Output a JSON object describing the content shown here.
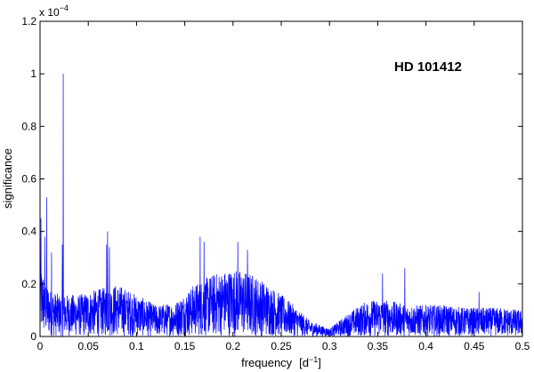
{
  "chart_data": {
    "type": "line",
    "title": "",
    "annotation": "HD 101412",
    "xlabel": "frequency",
    "xlabel_unit": "[d",
    "xlabel_unit_sup": "−1",
    "xlabel_unit_close": "]",
    "ylabel": "significance",
    "y_scale_text": "x 10",
    "y_scale_exp": "−4",
    "xlim": [
      0,
      0.5
    ],
    "ylim": [
      0,
      1.2
    ],
    "grid": false,
    "line_color": "#0000ff",
    "x_ticks": [
      0,
      0.05,
      0.1,
      0.15,
      0.2,
      0.25,
      0.3,
      0.35,
      0.4,
      0.45,
      0.5
    ],
    "x_tick_labels": [
      "0",
      "0.05",
      "0.1",
      "0.15",
      "0.2",
      "0.25",
      "0.3",
      "0.35",
      "0.4",
      "0.45",
      "0.5"
    ],
    "y_ticks": [
      0,
      0.2,
      0.4,
      0.6,
      0.8,
      1,
      1.2
    ],
    "y_tick_labels": [
      "0",
      "0.2",
      "0.4",
      "0.6",
      "0.8",
      "1",
      "1.2"
    ],
    "series": [
      {
        "envelope": {
          "x": [
            0,
            0.01,
            0.02,
            0.04,
            0.06,
            0.08,
            0.1,
            0.12,
            0.14,
            0.16,
            0.18,
            0.2,
            0.22,
            0.24,
            0.26,
            0.28,
            0.3,
            0.32,
            0.34,
            0.36,
            0.38,
            0.4,
            0.42,
            0.44,
            0.46,
            0.48,
            0.5
          ],
          "y": [
            0.28,
            0.18,
            0.16,
            0.16,
            0.18,
            0.2,
            0.16,
            0.12,
            0.13,
            0.2,
            0.24,
            0.26,
            0.24,
            0.19,
            0.13,
            0.06,
            0.03,
            0.09,
            0.14,
            0.14,
            0.12,
            0.12,
            0.12,
            0.11,
            0.11,
            0.11,
            0.1
          ]
        },
        "peaks": [
          {
            "x": 0.001,
            "y": 0.45
          },
          {
            "x": 0.005,
            "y": 0.38
          },
          {
            "x": 0.007,
            "y": 0.53
          },
          {
            "x": 0.012,
            "y": 0.32
          },
          {
            "x": 0.024,
            "y": 1.0
          },
          {
            "x": 0.023,
            "y": 0.35
          },
          {
            "x": 0.069,
            "y": 0.35
          },
          {
            "x": 0.07,
            "y": 0.4
          },
          {
            "x": 0.072,
            "y": 0.34
          },
          {
            "x": 0.166,
            "y": 0.38
          },
          {
            "x": 0.17,
            "y": 0.36
          },
          {
            "x": 0.205,
            "y": 0.36
          },
          {
            "x": 0.215,
            "y": 0.33
          },
          {
            "x": 0.355,
            "y": 0.24
          },
          {
            "x": 0.378,
            "y": 0.26
          },
          {
            "x": 0.455,
            "y": 0.17
          }
        ]
      }
    ]
  }
}
